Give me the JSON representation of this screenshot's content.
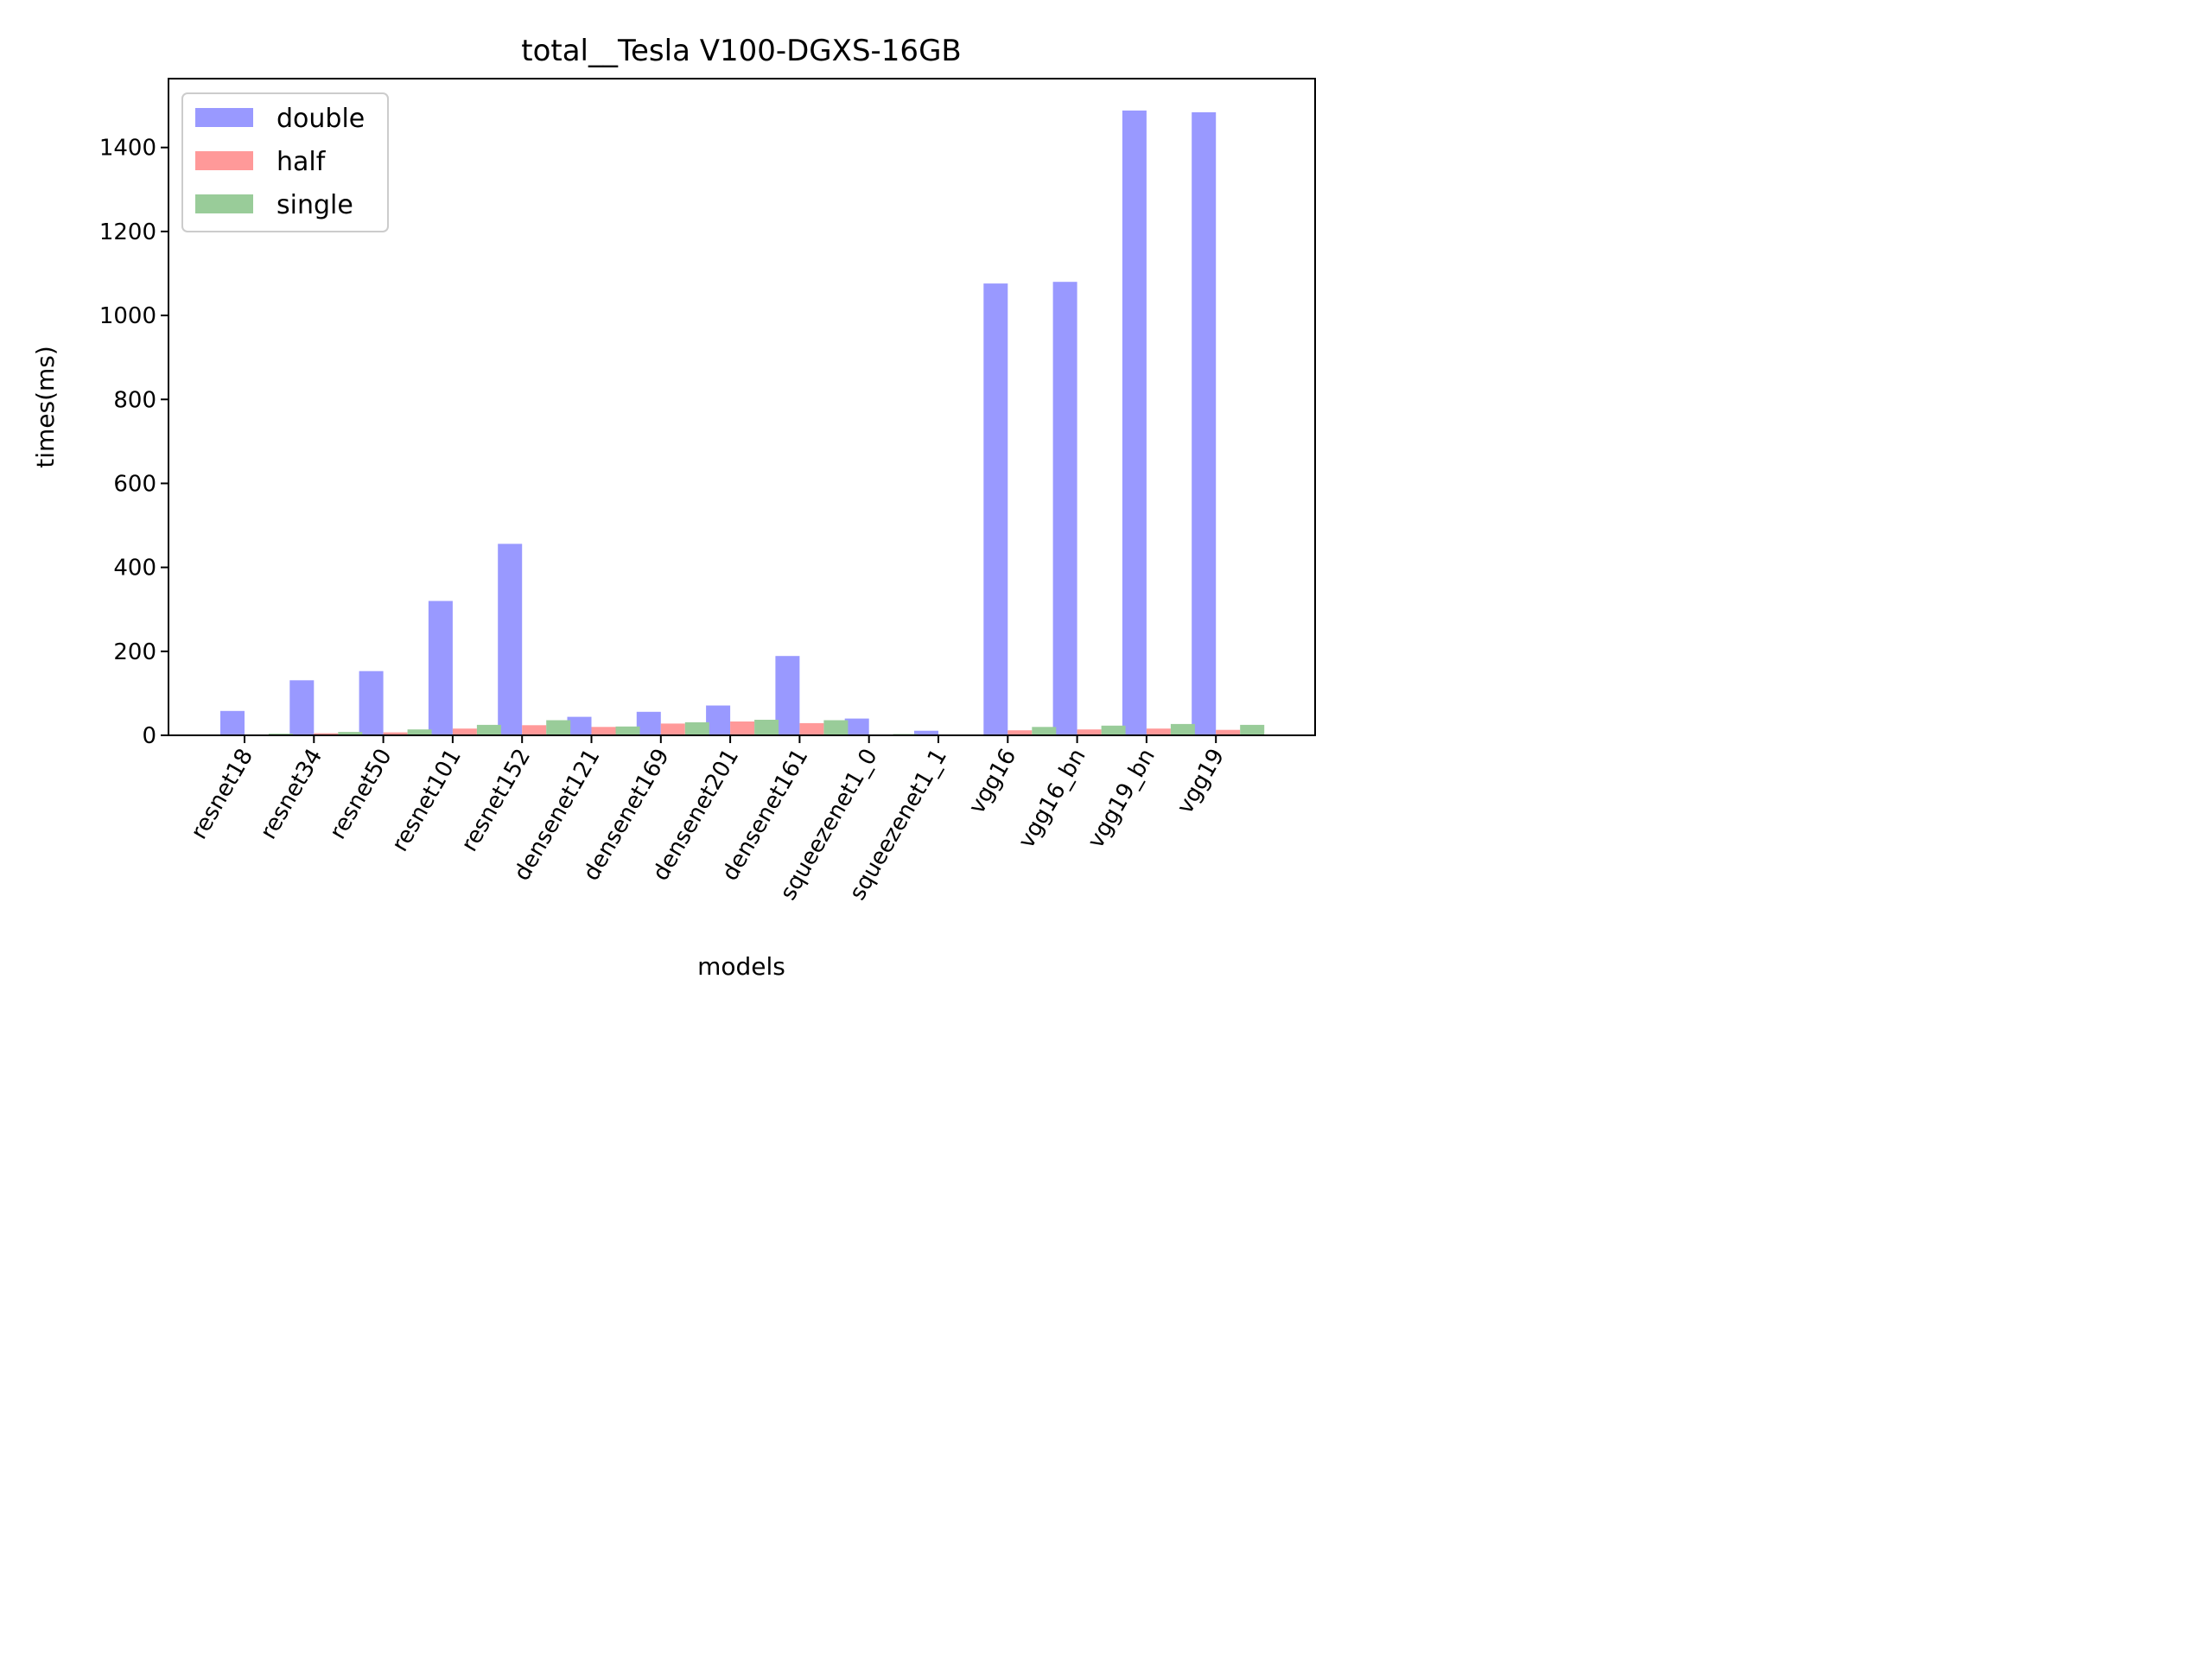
{
  "chart_data": {
    "type": "bar",
    "title": "total__Tesla V100-DGXS-16GB",
    "xlabel": "models",
    "ylabel": "times(ms)",
    "ylim": [
      0,
      1564
    ],
    "yticks": [
      0,
      200,
      400,
      600,
      800,
      1000,
      1200,
      1400
    ],
    "grid": false,
    "legend_position": "top-left",
    "categories": [
      "resnet18",
      "resnet34",
      "resnet50",
      "resnet101",
      "resnet152",
      "densenet121",
      "densenet169",
      "densenet201",
      "densenet161",
      "squeezenet1_0",
      "squeezenet1_1",
      "vgg16",
      "vgg16_bn",
      "vgg19_bn",
      "vgg19"
    ],
    "series": [
      {
        "name": "double",
        "color": "#9999ff",
        "values": [
          58,
          131,
          153,
          320,
          456,
          44,
          56,
          71,
          189,
          40,
          11,
          1076,
          1080,
          1488,
          1484
        ]
      },
      {
        "name": "half",
        "color": "#ff9999",
        "values": [
          2,
          5,
          7,
          16,
          24,
          20,
          28,
          33,
          29,
          2,
          1,
          12,
          14,
          16,
          13
        ]
      },
      {
        "name": "single",
        "color": "#99cc99",
        "values": [
          4,
          8,
          14,
          25,
          36,
          21,
          31,
          37,
          36,
          3,
          2,
          20,
          23,
          27,
          25
        ]
      }
    ]
  }
}
